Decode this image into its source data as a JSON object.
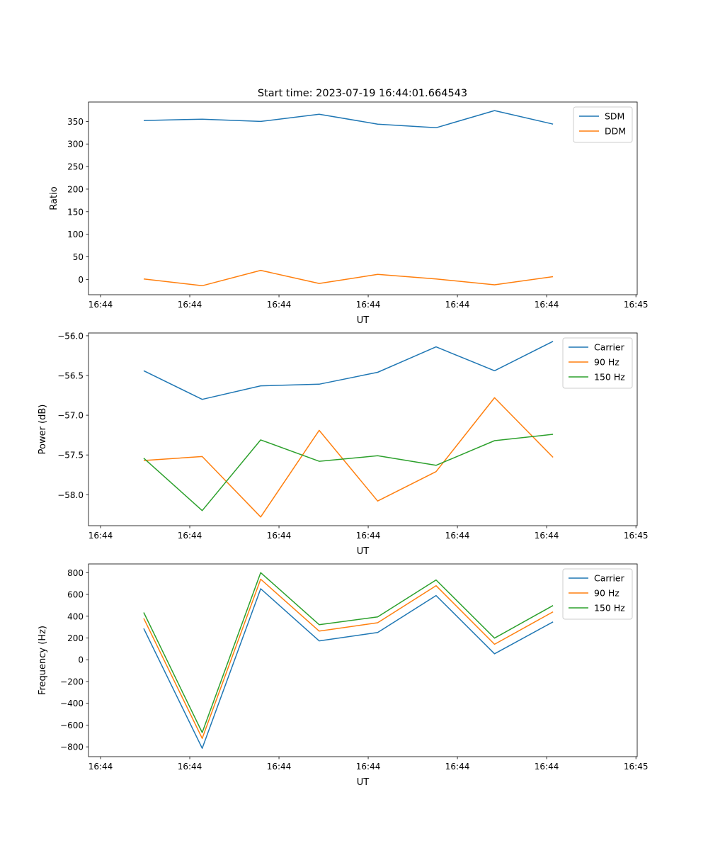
{
  "chart_data": {
    "title": "Start time: 2023-07-19 16:44:01.664543",
    "colors": {
      "blue": "#1f77b4",
      "orange": "#ff7f0e",
      "green": "#2ca02c"
    },
    "panels": [
      {
        "type": "line",
        "xlabel": "UT",
        "ylabel": "Ratio",
        "x": [
          0,
          1,
          2,
          3,
          4,
          5,
          6,
          7
        ],
        "xlim": [
          -0.945,
          8.44
        ],
        "xticks": [
          -0.739,
          0.787,
          2.313,
          3.839,
          5.365,
          6.891,
          8.418
        ],
        "xtick_labels": [
          "16:44",
          "16:44",
          "16:44",
          "16:44",
          "16:44",
          "16:44",
          "16:45"
        ],
        "ylim": [
          -34,
          393
        ],
        "yticks": [
          0,
          50,
          100,
          150,
          200,
          250,
          300,
          350
        ],
        "ytick_labels": [
          "0",
          "50",
          "100",
          "150",
          "200",
          "250",
          "300",
          "350"
        ],
        "legend": "top-right",
        "series": [
          {
            "name": "SDM",
            "color": "#1f77b4",
            "values": [
              352,
              355,
              350,
              366,
              344,
              336,
              374,
              344
            ]
          },
          {
            "name": "DDM",
            "color": "#ff7f0e",
            "values": [
              1,
              -14,
              20,
              -9,
              11,
              1,
              -12,
              6
            ]
          }
        ]
      },
      {
        "type": "line",
        "xlabel": "UT",
        "ylabel": "Power (dB)",
        "x": [
          0,
          1,
          2,
          3,
          4,
          5,
          6,
          7
        ],
        "xlim": [
          -0.945,
          8.44
        ],
        "xticks": [
          -0.739,
          0.787,
          2.313,
          3.839,
          5.365,
          6.891,
          8.418
        ],
        "xtick_labels": [
          "16:44",
          "16:44",
          "16:44",
          "16:44",
          "16:44",
          "16:44",
          "16:45"
        ],
        "ylim": [
          -58.39,
          -55.965
        ],
        "yticks": [
          -58.0,
          -57.5,
          -57.0,
          -56.5,
          -56.0
        ],
        "ytick_labels": [
          "−58.0",
          "−57.5",
          "−57.0",
          "−56.5",
          "−56.0"
        ],
        "legend": "top-right",
        "series": [
          {
            "name": "Carrier",
            "color": "#1f77b4",
            "values": [
              -56.44,
              -56.8,
              -56.63,
              -56.61,
              -56.46,
              -56.14,
              -56.44,
              -56.07
            ]
          },
          {
            "name": "90 Hz",
            "color": "#ff7f0e",
            "values": [
              -57.57,
              -57.52,
              -58.28,
              -57.19,
              -58.08,
              -57.71,
              -56.78,
              -57.53
            ]
          },
          {
            "name": "150 Hz",
            "color": "#2ca02c",
            "values": [
              -57.54,
              -58.2,
              -57.31,
              -57.58,
              -57.51,
              -57.63,
              -57.32,
              -57.24
            ]
          }
        ]
      },
      {
        "type": "line",
        "xlabel": "UT",
        "ylabel": "Frequency (Hz)",
        "x": [
          0,
          1,
          2,
          3,
          4,
          5,
          6,
          7
        ],
        "xlim": [
          -0.945,
          8.44
        ],
        "xticks": [
          -0.739,
          0.787,
          2.313,
          3.839,
          5.365,
          6.891,
          8.418
        ],
        "xtick_labels": [
          "16:44",
          "16:44",
          "16:44",
          "16:44",
          "16:44",
          "16:44",
          "16:45"
        ],
        "ylim": [
          -890,
          880
        ],
        "yticks": [
          -800,
          -600,
          -400,
          -200,
          0,
          200,
          400,
          600,
          800
        ],
        "ytick_labels": [
          "−800",
          "−600",
          "−400",
          "−200",
          "0",
          "200",
          "400",
          "600",
          "800"
        ],
        "legend": "top-right",
        "series": [
          {
            "name": "Carrier",
            "color": "#1f77b4",
            "values": [
              287,
              -813,
              652,
              173,
              250,
              590,
              55,
              348
            ]
          },
          {
            "name": "90 Hz",
            "color": "#ff7f0e",
            "values": [
              380,
              -722,
              740,
              263,
              340,
              680,
              142,
              440
            ]
          },
          {
            "name": "150 Hz",
            "color": "#2ca02c",
            "values": [
              434,
              -669,
              800,
              322,
              393,
              733,
              199,
              498
            ]
          }
        ]
      }
    ]
  }
}
